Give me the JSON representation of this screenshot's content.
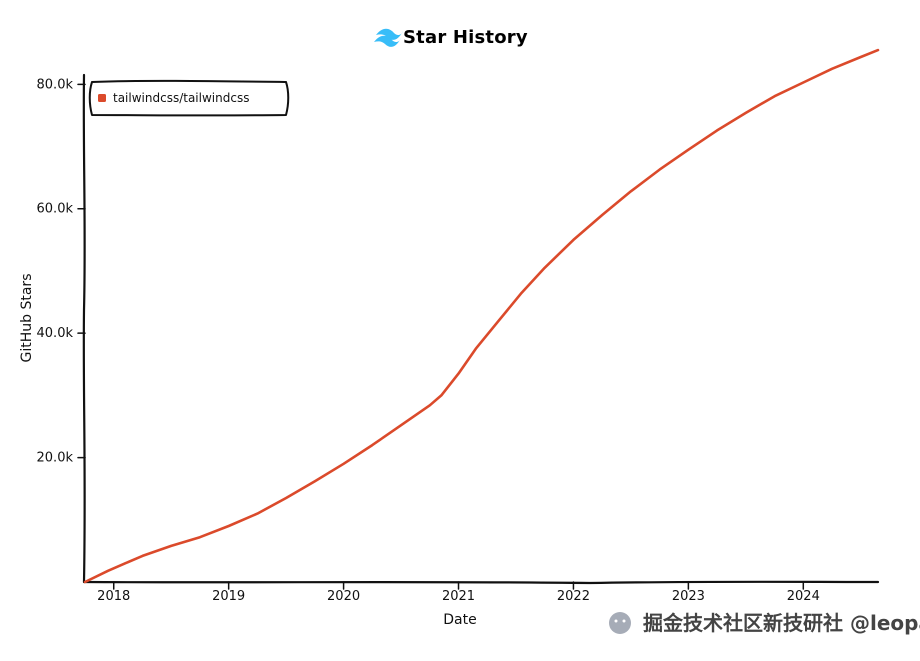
{
  "chart_data": {
    "type": "line",
    "title": "Star History",
    "xlabel": "Date",
    "ylabel": "GitHub Stars",
    "x_ticks": [
      "2018",
      "2019",
      "2020",
      "2021",
      "2022",
      "2023",
      "2024"
    ],
    "y_ticks": [
      "20.0k",
      "40.0k",
      "60.0k",
      "80.0k"
    ],
    "xlim": [
      2017.75,
      2024.65
    ],
    "ylim": [
      0,
      81500
    ],
    "legend": "top-left",
    "grid": false,
    "series": [
      {
        "name": "tailwindcss/tailwindcss",
        "color": "#db4a2b",
        "x": [
          2017.75,
          2017.95,
          2018.1,
          2018.25,
          2018.5,
          2018.75,
          2019.0,
          2019.25,
          2019.5,
          2019.75,
          2020.0,
          2020.25,
          2020.5,
          2020.75,
          2020.85,
          2021.0,
          2021.15,
          2021.35,
          2021.55,
          2021.75,
          2022.0,
          2022.25,
          2022.5,
          2022.75,
          2023.0,
          2023.25,
          2023.5,
          2023.75,
          2024.0,
          2024.25,
          2024.5,
          2024.65
        ],
        "values": [
          0,
          1800,
          3000,
          4200,
          5800,
          7200,
          9000,
          11000,
          13500,
          16200,
          19000,
          22000,
          25200,
          28400,
          30000,
          33500,
          37500,
          42000,
          46500,
          50500,
          55000,
          59000,
          62800,
          66300,
          69500,
          72600,
          75400,
          78100,
          80300,
          82500,
          84400,
          85500
        ]
      }
    ]
  },
  "header": {
    "logo_icon": "tailwind-wave-logo"
  },
  "watermark": {
    "text": "掘金技术社区新技研社",
    "handle": "@leopai"
  }
}
